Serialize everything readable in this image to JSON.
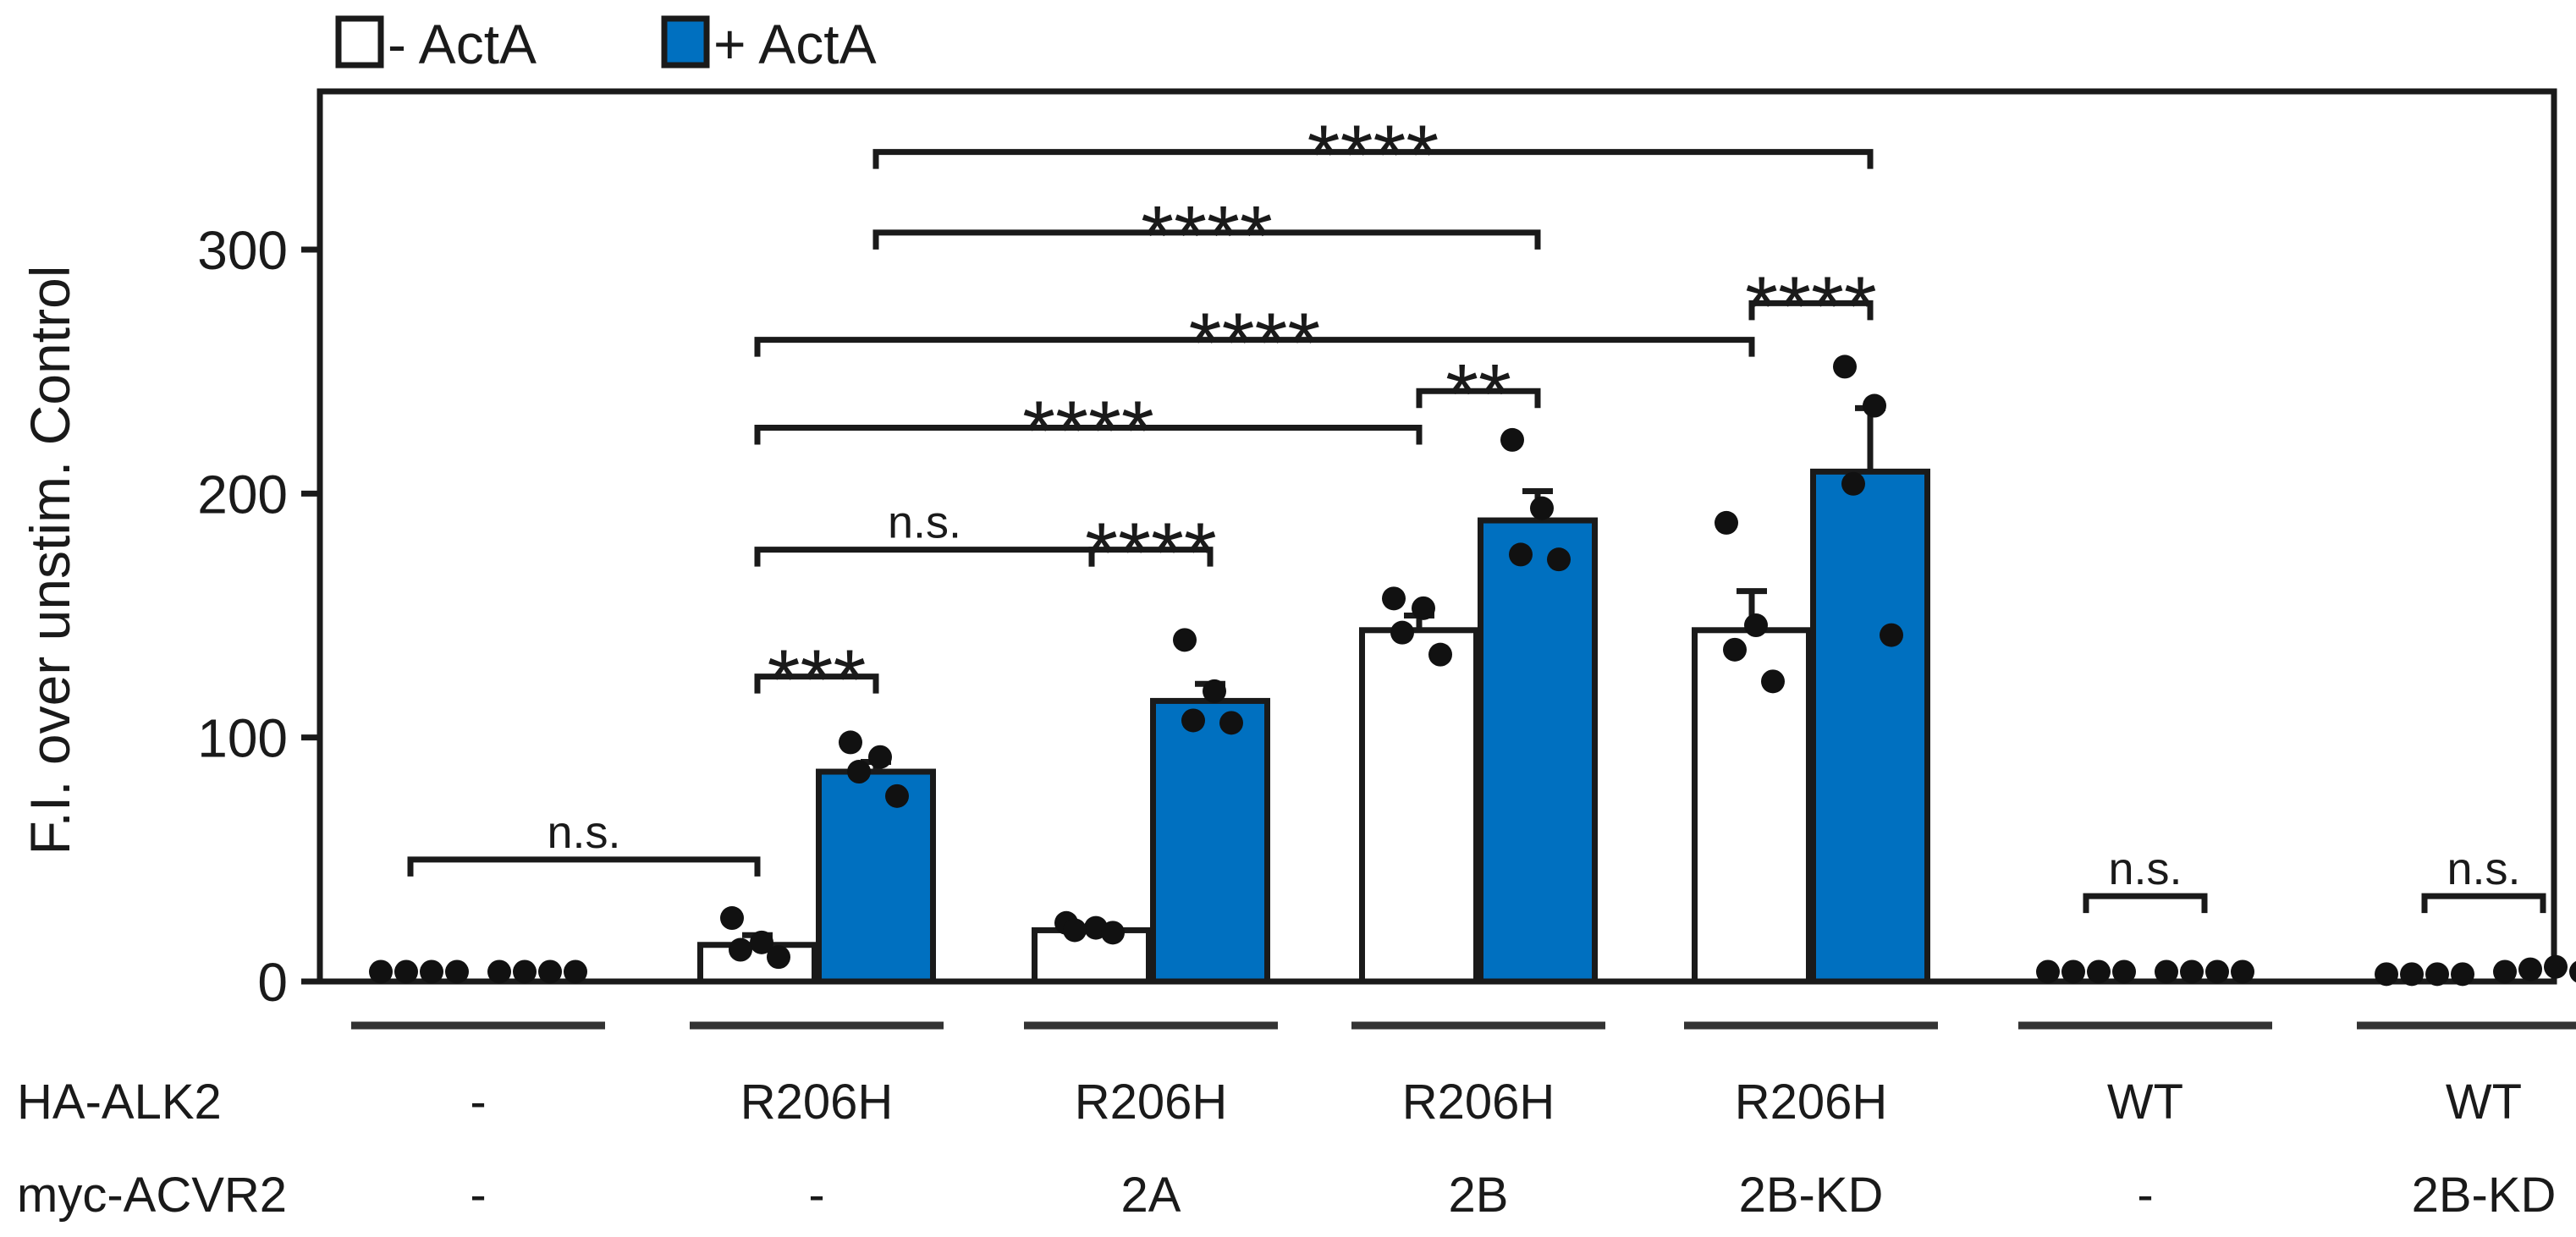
{
  "chart_data": {
    "type": "bar",
    "ylabel": "F.I. over unstim. Control",
    "ylim": [
      0,
      360
    ],
    "yticks": [
      0,
      100,
      200,
      300
    ],
    "legend": {
      "position": "top-left",
      "items": [
        {
          "label": "- ActA",
          "color": "#ffffff"
        },
        {
          "label": "+ ActA",
          "color": "#0070c0"
        }
      ]
    },
    "row_labels": {
      "alk2": "HA-ALK2",
      "acvr2": "myc-ACVR2"
    },
    "groups": [
      {
        "alk2": "-",
        "acvr2": "-",
        "minus": {
          "mean": 4,
          "sem": 0,
          "points": [
            4,
            4,
            4,
            4
          ],
          "bar": false
        },
        "plus": {
          "mean": 4,
          "sem": 0,
          "points": [
            4,
            4,
            4,
            4
          ],
          "bar": false
        }
      },
      {
        "alk2": "R206H",
        "acvr2": "-",
        "minus": {
          "mean": 15,
          "sem": 4,
          "points": [
            26,
            16,
            13,
            10
          ],
          "bar": true
        },
        "plus": {
          "mean": 86,
          "sem": 4,
          "points": [
            98,
            92,
            86,
            76
          ],
          "bar": true
        }
      },
      {
        "alk2": "R206H",
        "acvr2": "2A",
        "minus": {
          "mean": 21,
          "sem": 1,
          "points": [
            24,
            22,
            21,
            20
          ],
          "bar": true
        },
        "plus": {
          "mean": 115,
          "sem": 7,
          "points": [
            140,
            119,
            107,
            106
          ],
          "bar": true
        }
      },
      {
        "alk2": "R206H",
        "acvr2": "2B",
        "minus": {
          "mean": 144,
          "sem": 6,
          "points": [
            157,
            153,
            143,
            134
          ],
          "bar": true
        },
        "plus": {
          "mean": 189,
          "sem": 12,
          "points": [
            222,
            194,
            175,
            173
          ],
          "bar": true
        }
      },
      {
        "alk2": "R206H",
        "acvr2": "2B-KD",
        "minus": {
          "mean": 144,
          "sem": 16,
          "points": [
            188,
            146,
            136,
            123
          ],
          "bar": true
        },
        "plus": {
          "mean": 209,
          "sem": 26,
          "points": [
            252,
            236,
            204,
            142
          ],
          "bar": true
        }
      },
      {
        "alk2": "WT",
        "acvr2": "-",
        "minus": {
          "mean": 4,
          "sem": 0,
          "points": [
            4,
            4,
            4,
            4
          ],
          "bar": false
        },
        "plus": {
          "mean": 4,
          "sem": 0,
          "points": [
            4,
            4,
            4,
            4
          ],
          "bar": false
        }
      },
      {
        "alk2": "WT",
        "acvr2": "2B-KD",
        "minus": {
          "mean": 3,
          "sem": 0,
          "points": [
            3,
            3,
            3,
            3
          ],
          "bar": false
        },
        "plus": {
          "mean": 4,
          "sem": 0,
          "points": [
            4,
            5,
            6,
            4
          ],
          "bar": false
        }
      }
    ],
    "annotations": [
      {
        "label": "n.s.",
        "from": [
          0,
          "center"
        ],
        "to": [
          1,
          "minus"
        ],
        "level": 50
      },
      {
        "label": "***",
        "from": [
          1,
          "minus"
        ],
        "to": [
          1,
          "plus"
        ],
        "level": 125
      },
      {
        "label": "n.s.",
        "from": [
          1,
          "minus"
        ],
        "to": [
          2,
          "minus"
        ],
        "level": 177
      },
      {
        "label": "****",
        "from": [
          2,
          "minus"
        ],
        "to": [
          2,
          "plus"
        ],
        "level": 177
      },
      {
        "label": "****",
        "from": [
          1,
          "minus"
        ],
        "to": [
          3,
          "minus"
        ],
        "level": 227
      },
      {
        "label": "**",
        "from": [
          3,
          "minus"
        ],
        "to": [
          3,
          "plus"
        ],
        "level": 242
      },
      {
        "label": "****",
        "from": [
          1,
          "minus"
        ],
        "to": [
          4,
          "minus"
        ],
        "level": 263
      },
      {
        "label": "****",
        "from": [
          4,
          "minus"
        ],
        "to": [
          4,
          "plus"
        ],
        "level": 278
      },
      {
        "label": "****",
        "from": [
          1,
          "plus"
        ],
        "to": [
          3,
          "plus"
        ],
        "level": 307
      },
      {
        "label": "****",
        "from": [
          1,
          "plus"
        ],
        "to": [
          4,
          "plus"
        ],
        "level": 340
      },
      {
        "label": "n.s.",
        "from": [
          5,
          "minus"
        ],
        "to": [
          5,
          "plus"
        ],
        "level": 35
      },
      {
        "label": "n.s.",
        "from": [
          6,
          "minus"
        ],
        "to": [
          6,
          "plus"
        ],
        "level": 35
      }
    ]
  }
}
